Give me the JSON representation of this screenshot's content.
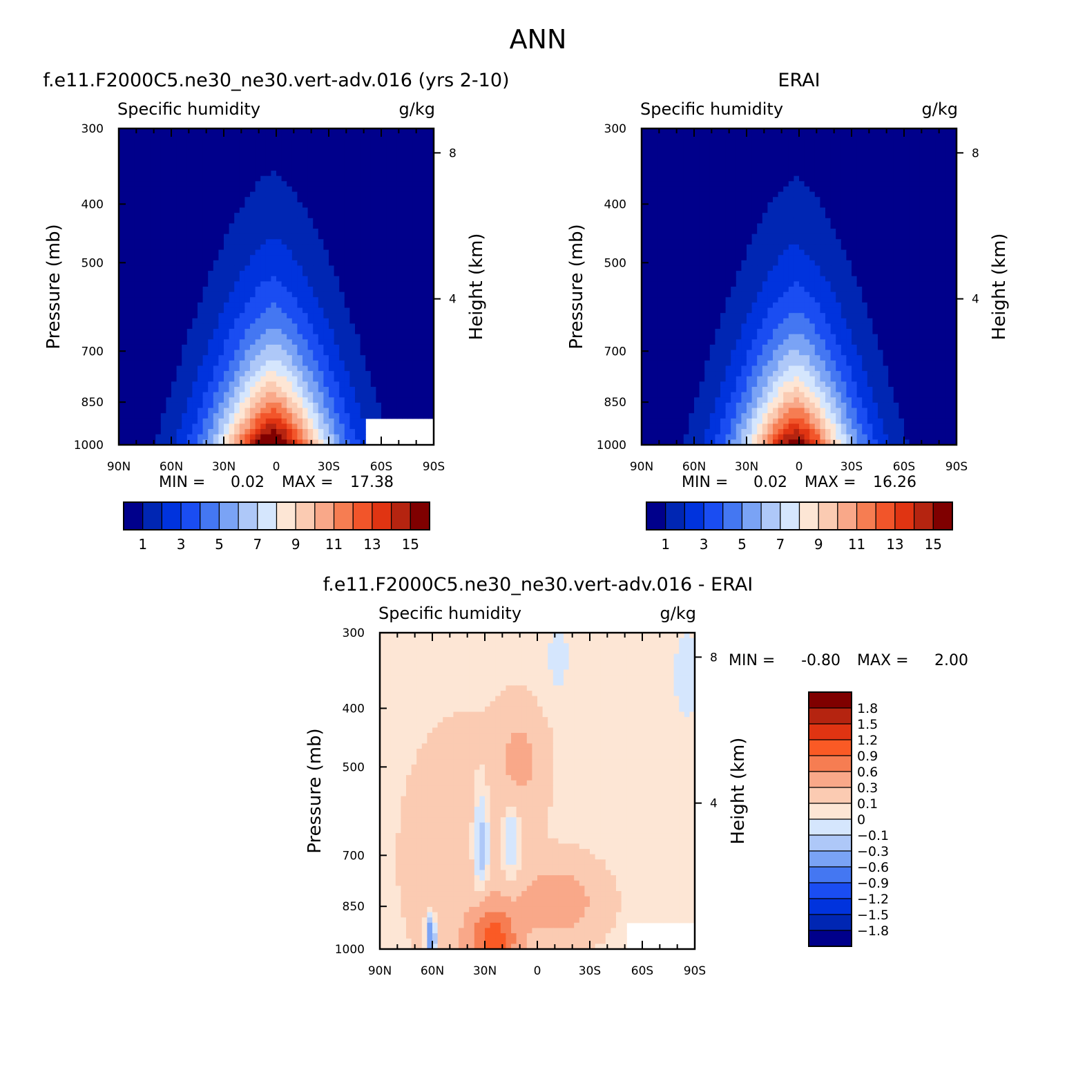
{
  "figure_title": "ANN",
  "colors": {
    "seq": [
      "#00008b",
      "#0026b3",
      "#0033dd",
      "#1a4df2",
      "#4477f2",
      "#7aa3f5",
      "#aec8f8",
      "#d5e6fd",
      "#fde6d5",
      "#fbcbb2",
      "#f9a889",
      "#f67d52",
      "#f2552a",
      "#e03412",
      "#b52410",
      "#7f0000"
    ],
    "diff": [
      "#00008b",
      "#0026b3",
      "#0033dd",
      "#1a4df2",
      "#4477f2",
      "#7aa3f5",
      "#aec8f8",
      "#d5e6fd",
      "#fde6d5",
      "#fbcbb2",
      "#f9a889",
      "#f67d52",
      "#fa5a25",
      "#e03412",
      "#b52410",
      "#7f0000"
    ]
  },
  "chart_data": [
    {
      "type": "heatmap",
      "title": "f.e11.F2000C5.ne30_ne30.vert-adv.016 (yrs 2-10)",
      "subtitle_left": "Specific humidity",
      "subtitle_right": "g/kg",
      "ylabel": "Pressure (mb)",
      "ylabel_right": "Height (km)",
      "x_ticks": [
        "90N",
        "60N",
        "30N",
        "0",
        "30S",
        "60S",
        "90S"
      ],
      "x_values": [
        90,
        60,
        30,
        0,
        -30,
        -60,
        -90
      ],
      "xlim": [
        90,
        -90
      ],
      "y_ticks": [
        300,
        400,
        500,
        700,
        850,
        1000
      ],
      "ylim": [
        1000,
        300
      ],
      "y_scale": "log",
      "height_ticks_km": [
        4,
        8
      ],
      "min_label": "MIN =",
      "min_value": "0.02",
      "max_label": "MAX =",
      "max_value": "17.38",
      "colorbar_labels": [
        "1",
        "3",
        "5",
        "7",
        "9",
        "11",
        "13",
        "15"
      ],
      "colorbar_levels": [
        0,
        1,
        2,
        3,
        4,
        5,
        6,
        7,
        8,
        9,
        10,
        11,
        12,
        13,
        14,
        15,
        16
      ],
      "field": {
        "peak": 17.38,
        "peak_lat": 2,
        "width_lat": 34,
        "scale_height_km": 2.6
      },
      "missing_region": "surface corner near 50S-90S below ~900 mb"
    },
    {
      "type": "heatmap",
      "title": "ERAI",
      "subtitle_left": "Specific humidity",
      "subtitle_right": "g/kg",
      "ylabel": "Pressure (mb)",
      "ylabel_right": "Height (km)",
      "x_ticks": [
        "90N",
        "60N",
        "30N",
        "0",
        "30S",
        "60S",
        "90S"
      ],
      "x_values": [
        90,
        60,
        30,
        0,
        -30,
        -60,
        -90
      ],
      "xlim": [
        90,
        -90
      ],
      "y_ticks": [
        300,
        400,
        500,
        700,
        850,
        1000
      ],
      "ylim": [
        1000,
        300
      ],
      "y_scale": "log",
      "height_ticks_km": [
        4,
        8
      ],
      "min_label": "MIN =",
      "min_value": "0.02",
      "max_label": "MAX =",
      "max_value": "16.26",
      "colorbar_labels": [
        "1",
        "3",
        "5",
        "7",
        "9",
        "11",
        "13",
        "15"
      ],
      "colorbar_levels": [
        0,
        1,
        2,
        3,
        4,
        5,
        6,
        7,
        8,
        9,
        10,
        11,
        12,
        13,
        14,
        15,
        16
      ],
      "field": {
        "peak": 16.26,
        "peak_lat": 2,
        "width_lat": 33,
        "scale_height_km": 2.6
      }
    },
    {
      "type": "heatmap",
      "title": "f.e11.F2000C5.ne30_ne30.vert-adv.016 - ERAI",
      "subtitle_left": "Specific humidity",
      "subtitle_right": "g/kg",
      "ylabel": "Pressure (mb)",
      "ylabel_right": "Height (km)",
      "x_ticks": [
        "90N",
        "60N",
        "30N",
        "0",
        "30S",
        "60S",
        "90S"
      ],
      "x_values": [
        90,
        60,
        30,
        0,
        -30,
        -60,
        -90
      ],
      "xlim": [
        90,
        -90
      ],
      "y_ticks": [
        300,
        400,
        500,
        700,
        850,
        1000
      ],
      "ylim": [
        1000,
        300
      ],
      "y_scale": "log",
      "height_ticks_km": [
        4,
        8
      ],
      "min_label": "MIN =",
      "min_value": "-0.80",
      "max_label": "MAX =",
      "max_value": "2.00",
      "colorbar_labels": [
        "1.8",
        "1.5",
        "1.2",
        "0.9",
        "0.6",
        "0.3",
        "0.1",
        "0",
        "-0.1",
        "-0.3",
        "-0.6",
        "-0.9",
        "-1.2",
        "-1.5",
        "-1.8"
      ],
      "colorbar_levels": [
        -2.1,
        -1.8,
        -1.5,
        -1.2,
        -0.9,
        -0.6,
        -0.3,
        -0.1,
        0,
        0.1,
        0.3,
        0.6,
        0.9,
        1.2,
        1.5,
        1.8,
        2.1
      ],
      "missing_region": "surface corner near 50S-90S below ~900 mb"
    }
  ]
}
